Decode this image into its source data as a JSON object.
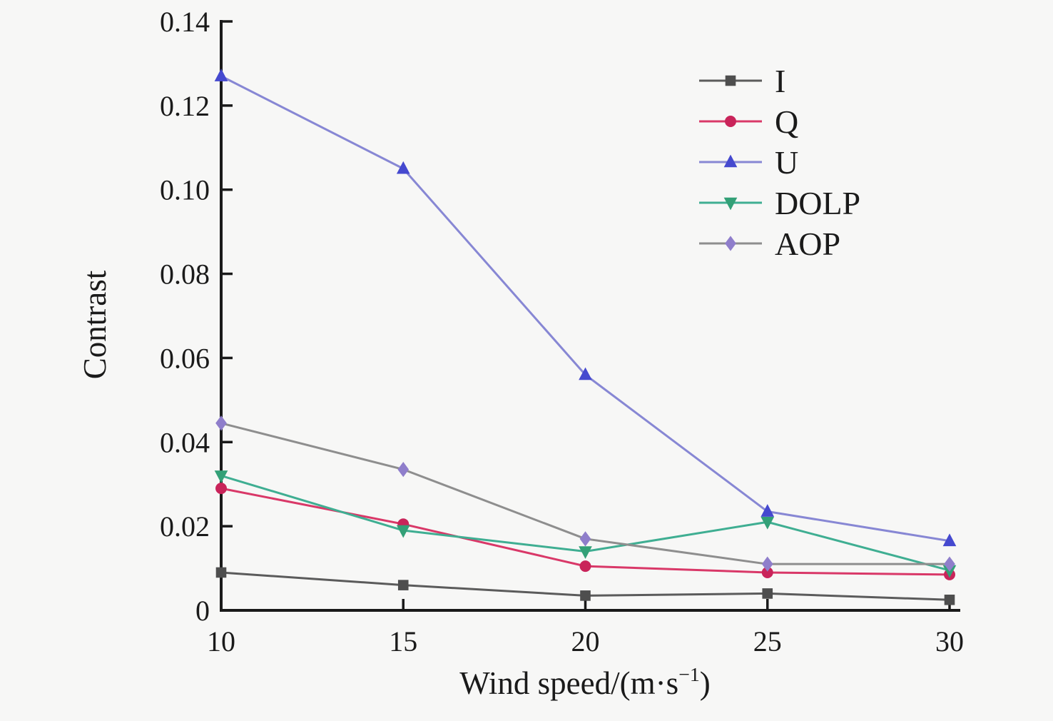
{
  "figure": {
    "background_color": "#f7f7f6",
    "axis_color": "#1a1a1a"
  },
  "chart_data": {
    "type": "line",
    "title": "",
    "xlabel_parts": {
      "prefix": "Wind speed/(m·s",
      "superscript": "−1",
      "suffix": ")"
    },
    "xlabel_full": "Wind speed/(m·s⁻¹)",
    "ylabel": "Contrast",
    "x": [
      10,
      15,
      20,
      25,
      30
    ],
    "xtick_labels": [
      "10",
      "15",
      "20",
      "25",
      "30"
    ],
    "xlim": [
      10,
      30
    ],
    "yticks": [
      0,
      0.02,
      0.04,
      0.06,
      0.08,
      0.1,
      0.12,
      0.14
    ],
    "ytick_labels": [
      "0",
      "0.02",
      "0.04",
      "0.06",
      "0.08",
      "0.10",
      "0.12",
      "0.14"
    ],
    "ylim": [
      0,
      0.14
    ],
    "grid": false,
    "legend_position": "top-right",
    "legend_frame": false,
    "series": [
      {
        "name": "I",
        "marker": "square",
        "line_color": "#5b5b5b",
        "marker_color": "#4e4e4e",
        "values": [
          0.009,
          0.006,
          0.0035,
          0.004,
          0.0025
        ]
      },
      {
        "name": "Q",
        "marker": "circle",
        "line_color": "#d93868",
        "marker_color": "#c9245a",
        "values": [
          0.029,
          0.0205,
          0.0105,
          0.009,
          0.0085
        ]
      },
      {
        "name": "U",
        "marker": "triangle-up",
        "line_color": "#8787d4",
        "marker_color": "#4549cf",
        "values": [
          0.127,
          0.105,
          0.056,
          0.0235,
          0.0165
        ]
      },
      {
        "name": "DOLP",
        "marker": "triangle-down",
        "line_color": "#3fae92",
        "marker_color": "#33a077",
        "values": [
          0.032,
          0.019,
          0.014,
          0.021,
          0.0095
        ]
      },
      {
        "name": "AOP",
        "marker": "diamond",
        "line_color": "#8e8e8e",
        "marker_color": "#8f7ecb",
        "values": [
          0.0445,
          0.0335,
          0.017,
          0.011,
          0.011
        ]
      }
    ]
  }
}
